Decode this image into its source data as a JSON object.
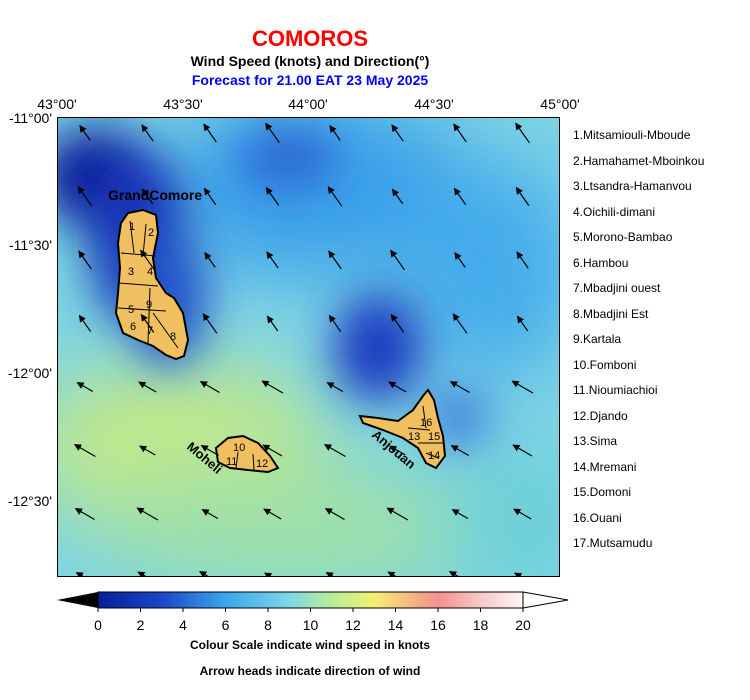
{
  "title": "COMOROS",
  "subtitle": "Wind Speed (knots) and Direction(°)",
  "forecast": "Forecast for  21.00 EAT 23 May 2025",
  "lon_labels": [
    "43°00'",
    "43°30'",
    "44°00'",
    "44°30'",
    "45°00'"
  ],
  "lat_labels": [
    "-11°00'",
    "-11°30'",
    "-12°00'",
    "-12°30'"
  ],
  "island_labels": {
    "grand_comore": "GrandComore",
    "moheli": "Moheli",
    "anjouan": "Anjouan"
  },
  "regions": [
    "1.Mitsamiouli-Mboude",
    "2.Hamahamet-Mboinkou",
    "3.Ltsandra-Hamanvou",
    "4.Oichili-dimani",
    "5.Morono-Bambao",
    "6.Hambou",
    "7.Mbadjini ouest",
    "8.Mbadjini Est",
    "9.Kartala",
    "10.Fomboni",
    "11.Nioumiachioi",
    "12.Djando",
    "13.Sima",
    "14.Mremani",
    "15.Domoni",
    "16.Ouani",
    "17.Mutsamudu"
  ],
  "region_numbers": {
    "grand_comore": [
      "1",
      "2",
      "3",
      "4",
      "5",
      "9",
      "6",
      "7",
      "8"
    ],
    "moheli": [
      "10",
      "11",
      "12"
    ],
    "anjouan": [
      "13",
      "14",
      "15",
      "16"
    ]
  },
  "colorbar": {
    "ticks": [
      "0",
      "2",
      "4",
      "6",
      "8",
      "10",
      "12",
      "14",
      "16",
      "18",
      "20"
    ],
    "unit_caption": "Colour Scale indicate wind speed in knots",
    "arrow_caption": "Arrow heads indicate direction of wind"
  },
  "colors": {
    "title": "#ff0000",
    "forecast": "#0000ff",
    "land": "#f0c060",
    "speed_low": "#0a1e9a",
    "speed_mid": "#5ec8ee",
    "speed_high": "#d0ee80"
  }
}
